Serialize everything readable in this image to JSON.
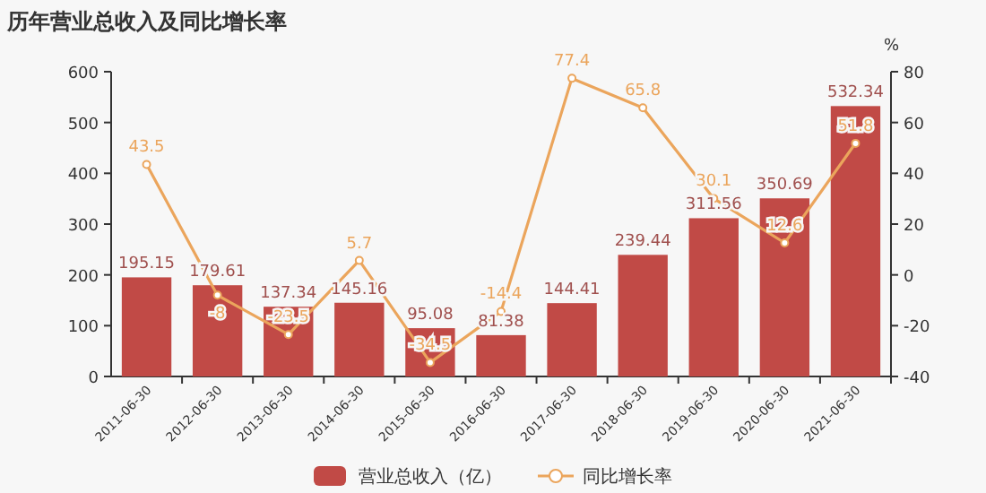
{
  "chart_data": {
    "type": "bar",
    "title": "历年营业总收入及同比增长率",
    "categories": [
      "2011-06-30",
      "2012-06-30",
      "2013-06-30",
      "2014-06-30",
      "2015-06-30",
      "2016-06-30",
      "2017-06-30",
      "2018-06-30",
      "2019-06-30",
      "2020-06-30",
      "2021-06-30"
    ],
    "series": [
      {
        "name": "营业总收入（亿）",
        "color": "#c14a46",
        "values": [
          195.15,
          179.61,
          137.34,
          145.16,
          95.08,
          81.38,
          144.41,
          239.44,
          311.56,
          350.69,
          532.34
        ]
      },
      {
        "name": "同比增长率",
        "type": "line",
        "axis": "y2",
        "color": "#eba55c",
        "marker": "circle",
        "values": [
          43.5,
          -8,
          -23.5,
          5.7,
          -34.5,
          -14.4,
          77.4,
          65.8,
          30.1,
          12.6,
          51.8
        ]
      }
    ],
    "ylim": [
      0,
      600
    ],
    "yticks": [
      0,
      100,
      200,
      300,
      400,
      500,
      600
    ],
    "y2lim": [
      -40,
      80
    ],
    "y2ticks": [
      -40,
      -20,
      0,
      20,
      40,
      60,
      80
    ],
    "y2label": "%",
    "legend": "bottom",
    "data_labels": true
  }
}
